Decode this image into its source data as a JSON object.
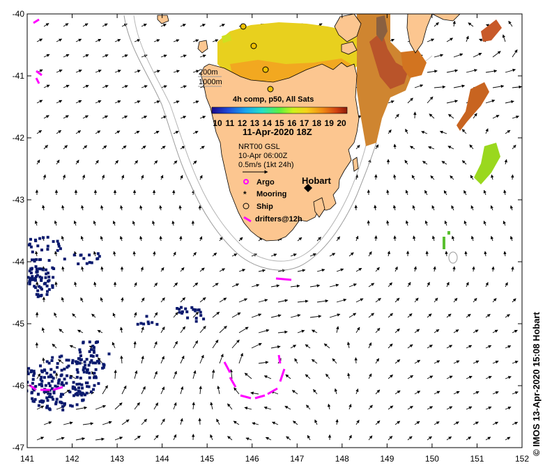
{
  "map": {
    "lon_range": [
      141,
      152
    ],
    "lat_range": [
      -47,
      -40
    ],
    "x_ticks": [
      "141",
      "142",
      "143",
      "144",
      "145",
      "146",
      "147",
      "148",
      "149",
      "150",
      "151",
      "152"
    ],
    "y_ticks": [
      "-40",
      "-41",
      "-42",
      "-43",
      "-44",
      "-45",
      "-46",
      "-47"
    ],
    "colors": {
      "land": "#fcc690",
      "coast": "#000000",
      "isobath": "#9a9a9a",
      "argo": "#ff00ff",
      "drifter": "#ff00ff",
      "sst_cold": "#0a1a6e"
    }
  },
  "legend": {
    "depth_200": "200m",
    "depth_1000": "1000m",
    "colorbar_title": "4h comp, p50, All Sats",
    "colorbar_ticks": [
      "10",
      "11",
      "12",
      "13",
      "14",
      "15",
      "16",
      "17",
      "18",
      "19",
      "20"
    ],
    "datetime": "11-Apr-2020 18Z",
    "current_source": "NRT00 GSL",
    "current_time": "10-Apr 06:00Z",
    "scale_vector": "0.5m/s (1kt 24h)",
    "argo_label": "Argo",
    "mooring_label": "Mooring",
    "ship_label": "Ship",
    "drifters_label": "drifters@12h"
  },
  "places": {
    "hobart": "Hobart"
  },
  "credit": "© IMOS 13-Apr-2020 15:08 Hobart"
}
